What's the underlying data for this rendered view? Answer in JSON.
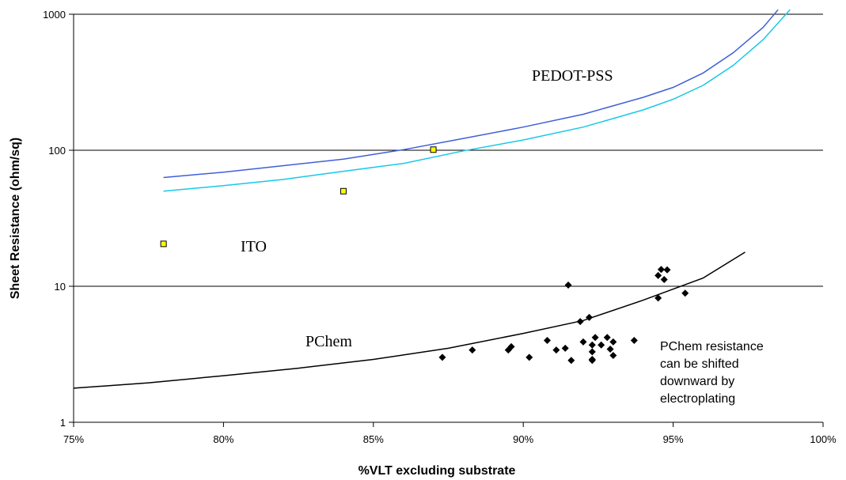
{
  "chart_data": {
    "type": "scatter",
    "title": "",
    "xlabel": "%VLT excluding substrate",
    "ylabel": "Sheet Resistance (ohm/sq)",
    "xlim": [
      75,
      100
    ],
    "ylim": [
      1,
      1000
    ],
    "y_scale": "log",
    "grid": "horizontal major gridlines",
    "x_ticks": [
      75,
      80,
      85,
      90,
      95,
      100
    ],
    "x_tick_labels": [
      "75%",
      "80%",
      "85%",
      "90%",
      "95%",
      "100%"
    ],
    "y_ticks": [
      1,
      10,
      100,
      1000
    ],
    "y_tick_labels": [
      "1",
      "10",
      "100",
      "1000"
    ],
    "series": [
      {
        "name": "PEDOT-PSS",
        "kind": "line",
        "color": "#3f5fd8",
        "points": [
          [
            78,
            63
          ],
          [
            80,
            69
          ],
          [
            82,
            77
          ],
          [
            84,
            86
          ],
          [
            86,
            101
          ],
          [
            88,
            122
          ],
          [
            90,
            148
          ],
          [
            92,
            184
          ],
          [
            94,
            245
          ],
          [
            95,
            290
          ],
          [
            96,
            370
          ],
          [
            97,
            520
          ],
          [
            98,
            800
          ],
          [
            98.5,
            1080
          ]
        ]
      },
      {
        "name": "",
        "kind": "line",
        "color": "#18c8e8",
        "points": [
          [
            78,
            50
          ],
          [
            80,
            55
          ],
          [
            82,
            61
          ],
          [
            84,
            70
          ],
          [
            86,
            80
          ],
          [
            88,
            99
          ],
          [
            90,
            119
          ],
          [
            92,
            148
          ],
          [
            94,
            198
          ],
          [
            95,
            237
          ],
          [
            96,
            300
          ],
          [
            97,
            420
          ],
          [
            98,
            650
          ],
          [
            98.9,
            1080
          ]
        ]
      },
      {
        "name": "ITO",
        "kind": "points",
        "color": "#ffff00",
        "points": [
          [
            78,
            20.5
          ],
          [
            84,
            50
          ],
          [
            87,
            101
          ]
        ]
      },
      {
        "name": "PChem",
        "kind": "line",
        "color": "#000000",
        "points": [
          [
            75,
            1.78
          ],
          [
            77.5,
            1.95
          ],
          [
            80,
            2.2
          ],
          [
            82.5,
            2.5
          ],
          [
            85,
            2.9
          ],
          [
            87.5,
            3.5
          ],
          [
            90,
            4.5
          ],
          [
            92,
            5.6
          ],
          [
            94,
            7.9
          ],
          [
            96,
            11.5
          ],
          [
            97.4,
            17.8
          ]
        ]
      },
      {
        "name": "",
        "kind": "points",
        "color": "#000000",
        "points": [
          [
            87.3,
            3.0
          ],
          [
            88.3,
            3.4
          ],
          [
            89.5,
            3.4
          ],
          [
            89.6,
            3.6
          ],
          [
            90.2,
            3.0
          ],
          [
            90.8,
            4.0
          ],
          [
            91.1,
            3.4
          ],
          [
            91.4,
            3.5
          ],
          [
            91.5,
            10.2
          ],
          [
            91.6,
            2.85
          ],
          [
            91.9,
            5.5
          ],
          [
            92.0,
            3.9
          ],
          [
            92.2,
            5.9
          ],
          [
            92.3,
            3.7
          ],
          [
            92.3,
            3.3
          ],
          [
            92.3,
            2.9
          ],
          [
            92.3,
            2.85
          ],
          [
            92.4,
            4.2
          ],
          [
            92.6,
            3.7
          ],
          [
            92.8,
            4.2
          ],
          [
            92.9,
            3.45
          ],
          [
            93.0,
            3.1
          ],
          [
            93.0,
            3.9
          ],
          [
            93.7,
            4.0
          ],
          [
            94.5,
            12.0
          ],
          [
            94.5,
            8.2
          ],
          [
            94.6,
            13.3
          ],
          [
            94.7,
            11.2
          ],
          [
            94.8,
            13.2
          ],
          [
            95.4,
            8.9
          ]
        ]
      }
    ],
    "labels": {
      "pedot": "PEDOT-PSS",
      "ito": "ITO",
      "pchem": "PChem",
      "note_lines": [
        "PChem resistance",
        "can be shifted",
        "downward by",
        "electroplating"
      ]
    }
  }
}
